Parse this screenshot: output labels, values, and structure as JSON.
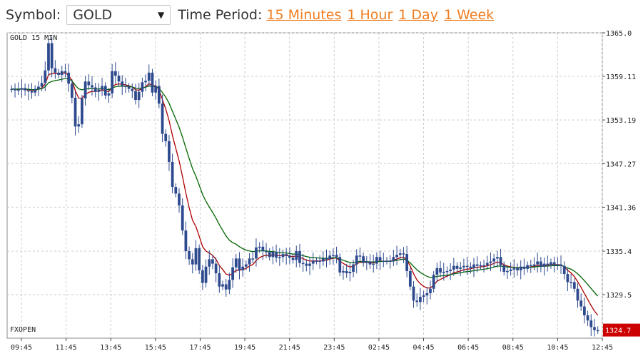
{
  "toolbar": {
    "symbol_label": "Symbol:",
    "symbol_value": "GOLD",
    "time_period_label": "Time Period:",
    "periods": [
      "15 Minutes",
      "1 Hour",
      "1 Day",
      "1 Week"
    ]
  },
  "chart_data": {
    "type": "candlestick",
    "title": "GOLD 15 MIN",
    "watermark": "FXOPEN",
    "x_labels": [
      "09:45",
      "11:45",
      "13:45",
      "15:45",
      "17:45",
      "19:45",
      "21:45",
      "23:45",
      "02:45",
      "04:45",
      "06:45",
      "08:45",
      "10:45",
      "12:45"
    ],
    "y_ticks": [
      "1365.0",
      "1359.11",
      "1353.19",
      "1347.27",
      "1341.36",
      "1335.4",
      "1329.5"
    ],
    "ylim": [
      1323.6,
      1365.0
    ],
    "last_price": "1324.7",
    "colors": {
      "candle": "#2e4a8e",
      "ma_fast": "#b00000",
      "ma_slow": "#006400",
      "grid": "#cccccc",
      "price_tag": "#cc0000"
    },
    "ma_fast_label": "",
    "ma_slow_label": "",
    "candles_close": [
      1357.4,
      1357.2,
      1357.3,
      1357.5,
      1357.2,
      1357.1,
      1356.9,
      1357.4,
      1357.7,
      1358.2,
      1359.9,
      1363.6,
      1360.2,
      1359.6,
      1359.3,
      1359.8,
      1359.6,
      1358.1,
      1356.2,
      1352.3,
      1352.6,
      1356.1,
      1358.4,
      1357.9,
      1357.6,
      1357.0,
      1357.3,
      1357.8,
      1356.5,
      1356.8,
      1359.8,
      1359.2,
      1358.4,
      1357.8,
      1357.7,
      1357.4,
      1357.1,
      1355.9,
      1357.0,
      1358.3,
      1358.5,
      1359.6,
      1356.9,
      1357.8,
      1355.4,
      1351.3,
      1350.3,
      1347.5,
      1344.1,
      1343.2,
      1341.6,
      1338.2,
      1335.4,
      1334.3,
      1333.6,
      1335.8,
      1332.8,
      1331.1,
      1333.3,
      1334.3,
      1333.7,
      1332.4,
      1330.6,
      1330.9,
      1330.2,
      1331.5,
      1333.2,
      1334.4,
      1332.8,
      1333.3,
      1333.6,
      1334.4,
      1334.4,
      1335.9,
      1336.0,
      1335.4,
      1335.3,
      1334.6,
      1335.3,
      1334.5,
      1334.6,
      1335.0,
      1334.8,
      1334.5,
      1334.2,
      1335.4,
      1333.8,
      1333.7,
      1333.4,
      1333.7,
      1334.1,
      1334.1,
      1334.0,
      1334.4,
      1334.3,
      1334.8,
      1334.9,
      1334.6,
      1332.5,
      1332.7,
      1332.4,
      1332.6,
      1333.6,
      1334.8,
      1334.7,
      1333.8,
      1334.0,
      1333.6,
      1333.7,
      1334.6,
      1334.1,
      1334.1,
      1334.1,
      1334.0,
      1334.6,
      1334.9,
      1335.1,
      1335.0,
      1332.7,
      1330.6,
      1328.7,
      1328.5,
      1329.2,
      1329.4,
      1329.7,
      1330.3,
      1332.2,
      1333.1,
      1332.5,
      1332.6,
      1332.7,
      1332.9,
      1333.4,
      1333.0,
      1333.2,
      1333.4,
      1333.3,
      1333.1,
      1333.6,
      1333.4,
      1333.5,
      1333.5,
      1333.8,
      1334.0,
      1334.4,
      1334.6,
      1333.5,
      1332.6,
      1332.7,
      1332.9,
      1333.1,
      1332.8,
      1333.3,
      1333.0,
      1333.5,
      1333.4,
      1333.6,
      1334.0,
      1333.3,
      1333.7,
      1333.5,
      1333.9,
      1333.5,
      1333.6,
      1333.4,
      1332.3,
      1331.2,
      1331.2,
      1330.3,
      1328.7,
      1327.9,
      1326.7,
      1326.0,
      1325.1,
      1324.7,
      1324.7
    ]
  }
}
